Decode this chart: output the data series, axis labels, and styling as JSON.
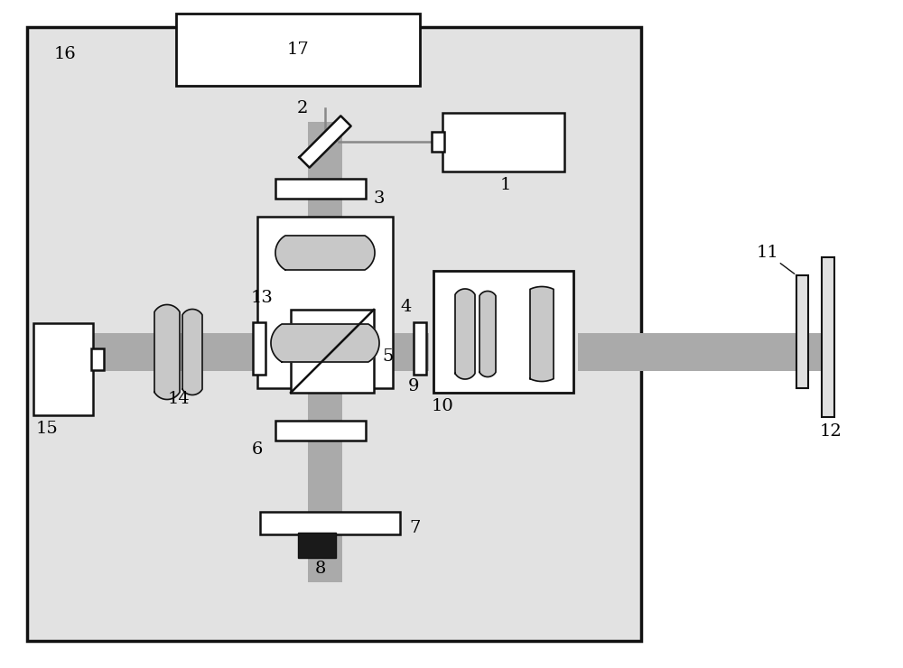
{
  "bg": "#e2e2e2",
  "white": "#ffffff",
  "black": "#111111",
  "beam": "#aaaaaa",
  "lens_gray": "#c8c8c8",
  "line_gray": "#777777",
  "fs": 14,
  "lw": 1.8
}
